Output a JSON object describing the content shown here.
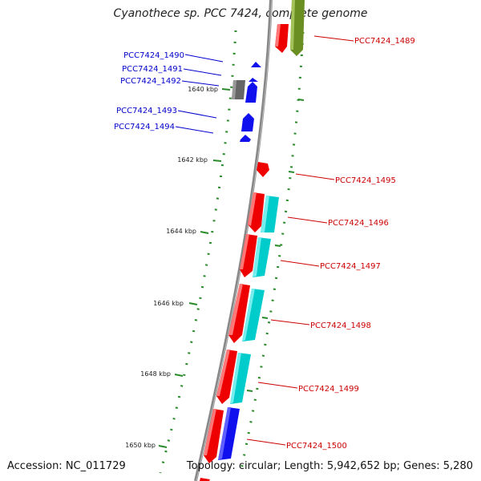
{
  "title": "Cyanothece sp. PCC 7424, complete genome",
  "footer": {
    "accession": "Accession: NC_011729",
    "summary": "Topology: circular; Length: 5,942,652 bp; Genes: 5,280"
  },
  "scale_ticks": [
    "1640 kbp",
    "1642 kbp",
    "1644 kbp",
    "1646 kbp",
    "1648 kbp",
    "1650 kbp"
  ],
  "genes_left": [
    "PCC7424_1490",
    "PCC7424_1491",
    "PCC7424_1492",
    "PCC7424_1493",
    "PCC7424_1494"
  ],
  "genes_right": [
    "PCC7424_1489",
    "PCC7424_1495",
    "PCC7424_1496",
    "PCC7424_1497",
    "PCC7424_1498",
    "PCC7424_1499",
    "PCC7424_1500"
  ],
  "colors": {
    "backbone": "#888888",
    "red": "#ee0000",
    "cyan": "#00cccc",
    "blue": "#1010ee",
    "olive": "#6b8e23",
    "gray": "#666666",
    "tick": "#2a8a2a",
    "left_label": "#0000cc",
    "right_label": "#cc0000"
  }
}
